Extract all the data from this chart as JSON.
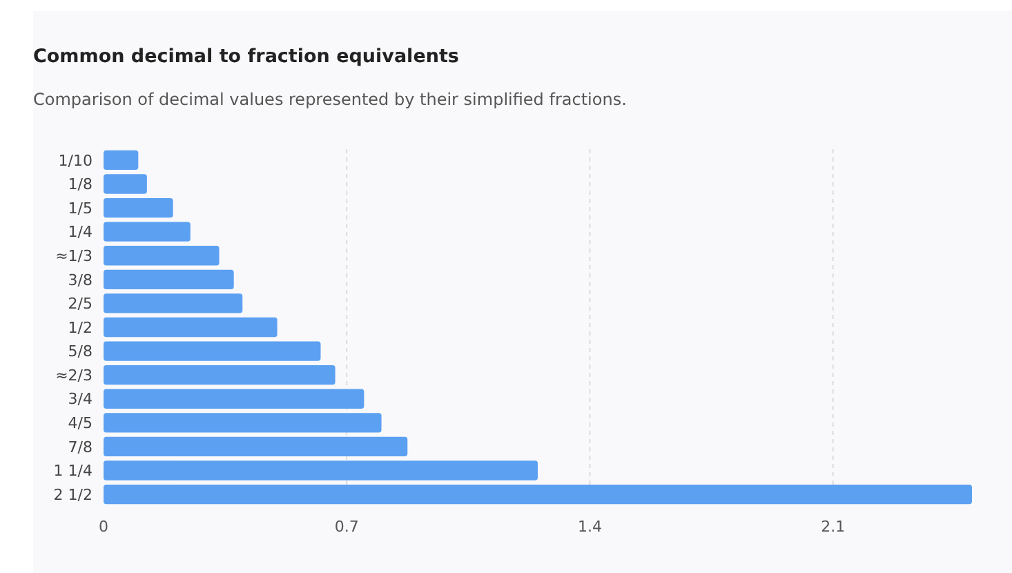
{
  "chart_data": {
    "type": "bar",
    "orientation": "horizontal",
    "title": "Common decimal to fraction equivalents",
    "subtitle": "Comparison of decimal values represented by their simplified fractions.",
    "categories": [
      "1/10",
      "1/8",
      "1/5",
      "1/4",
      "≈1/3",
      "3/8",
      "2/5",
      "1/2",
      "5/8",
      "≈2/3",
      "3/4",
      "4/5",
      "7/8",
      "1 1/4",
      "2 1/2"
    ],
    "values": [
      0.1,
      0.125,
      0.2,
      0.25,
      0.333,
      0.375,
      0.4,
      0.5,
      0.625,
      0.667,
      0.75,
      0.8,
      0.875,
      1.25,
      2.5
    ],
    "color": "#5ca0f2",
    "xlim": [
      0,
      2.5
    ],
    "xticks": [
      0,
      0.7,
      1.4,
      2.1
    ],
    "grid": "x"
  }
}
